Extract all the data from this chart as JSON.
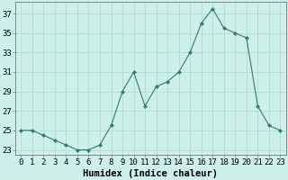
{
  "title": "",
  "xlabel": "Humidex (Indice chaleur)",
  "x": [
    0,
    1,
    2,
    3,
    4,
    5,
    6,
    7,
    8,
    9,
    10,
    11,
    12,
    13,
    14,
    15,
    16,
    17,
    18,
    19,
    20,
    21,
    22,
    23
  ],
  "y": [
    25,
    25,
    24.5,
    24,
    23.5,
    23,
    23,
    23.5,
    25.5,
    29,
    31,
    27.5,
    29.5,
    30,
    31,
    33,
    36,
    37.5,
    35.5,
    35,
    34.5,
    27.5,
    25.5,
    25
  ],
  "line_color": "#2e7d6e",
  "marker": "D",
  "marker_size": 2.2,
  "background_color": "#cef0ea",
  "grid_color": "#aad8d0",
  "ylim": [
    22.5,
    38.2
  ],
  "yticks": [
    23,
    25,
    27,
    29,
    31,
    33,
    35,
    37
  ],
  "xlim": [
    -0.5,
    23.5
  ],
  "spine_color": "#777777",
  "xlabel_fontsize": 7.5,
  "tick_fontsize": 6.5,
  "figsize": [
    3.2,
    2.0
  ],
  "dpi": 100
}
